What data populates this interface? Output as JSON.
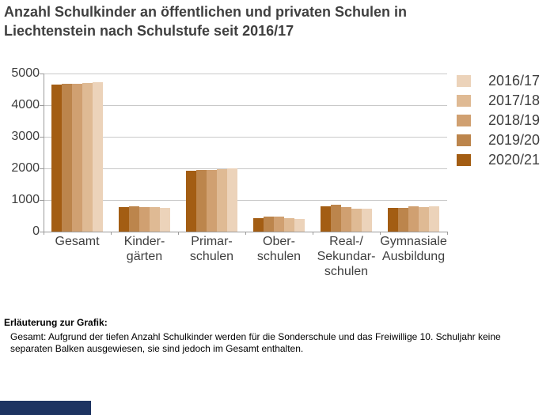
{
  "title": {
    "line1": "Anzahl Schulkinder an öffentlichen und privaten Schulen in",
    "line2": "Liechtenstein nach Schulstufe seit 2016/17"
  },
  "footnote": {
    "heading": "Erläuterung zur Grafik:",
    "body": "Gesamt: Aufgrund der tiefen Anzahl Schulkinder werden für die Sonderschule und das Freiwillige 10. Schuljahr keine separaten Balken ausgewiesen, sie sind jedoch im Gesamt enthalten."
  },
  "footer_bar": {
    "color": "#1d3361"
  },
  "chart_data": {
    "type": "bar",
    "title": "Anzahl Schulkinder an öffentlichen und privaten Schulen in Liechtenstein nach Schulstufe seit 2016/17",
    "xlabel": "",
    "ylabel": "",
    "ylim": [
      0,
      5000
    ],
    "ytick_step": 1000,
    "grid": "horizontal",
    "legend_position": "top-right",
    "bar_order_in_group": "newest year (2020/21, darkest) leftmost to oldest year (2016/17, lightest) rightmost",
    "categories": [
      "Gesamt",
      "Kindergärten",
      "Primarschulen",
      "Oberschulen",
      "Real-/Sekundarschulen",
      "Gymnasiale Ausbildung"
    ],
    "category_label_lines": [
      [
        "Gesamt"
      ],
      [
        "Kinder-",
        "gärten"
      ],
      [
        "Primar-",
        "schulen"
      ],
      [
        "Ober-",
        "schulen"
      ],
      [
        "Real-/",
        "Sekundar-",
        "schulen"
      ],
      [
        "Gymnasiale",
        "Ausbildung"
      ]
    ],
    "series": [
      {
        "name": "2016/17",
        "color": "#ecd3ba",
        "values": [
          4720,
          760,
          1990,
          410,
          735,
          790
        ]
      },
      {
        "name": "2017/18",
        "color": "#dfba94",
        "values": [
          4700,
          765,
          1980,
          425,
          730,
          775
        ]
      },
      {
        "name": "2018/19",
        "color": "#d0a071",
        "values": [
          4680,
          780,
          1960,
          465,
          775,
          790
        ]
      },
      {
        "name": "2019/20",
        "color": "#bc854c",
        "values": [
          4675,
          790,
          1950,
          470,
          840,
          755
        ]
      },
      {
        "name": "2020/21",
        "color": "#a35d13",
        "values": [
          4660,
          780,
          1925,
          430,
          805,
          750
        ]
      }
    ]
  }
}
